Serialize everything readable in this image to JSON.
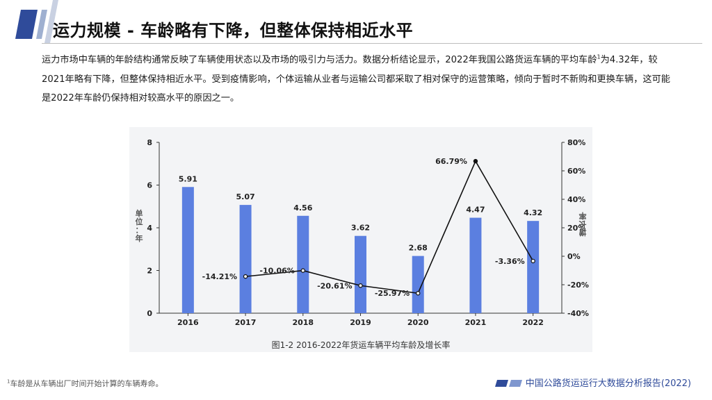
{
  "header": {
    "title": "运力规模 - 车龄略有下降，但整体保持相近水平"
  },
  "intro": {
    "part1": "运力市场中车辆的年龄结构通常反映了车辆使用状态以及市场的吸引力与活力。数据分析结论显示，2022年我国公路货运车辆的平均车龄",
    "sup": "1",
    "part2": "为4.32年，较2021年略有下降，但整体保持相近水平。受到疫情影响，个体运输从业者与运输公司都采取了相对保守的运营策略，倾向于暂时不新购和更换车辆，这可能是2022年车龄仍保持相对较高水平的原因之一。"
  },
  "chart_data": {
    "type": "bar",
    "title": "图1-2 2016-2022年货运车辆平均车龄及增长率",
    "categories": [
      "2016",
      "2017",
      "2018",
      "2019",
      "2020",
      "2021",
      "2022"
    ],
    "ylabel": "单位：年",
    "y2label": "增长率",
    "ylim": [
      0,
      8
    ],
    "yticks": [
      "0",
      "2",
      "4",
      "6",
      "8"
    ],
    "y2lim": [
      -40,
      80
    ],
    "y2ticks": [
      "-40%",
      "-20%",
      "0%",
      "20%",
      "40%",
      "60%",
      "80%"
    ],
    "grid": false,
    "series": [
      {
        "kind": "bar",
        "axis": "left",
        "values": [
          5.91,
          5.07,
          4.56,
          3.62,
          2.68,
          4.47,
          4.32
        ],
        "labels": [
          "5.91",
          "5.07",
          "4.56",
          "3.62",
          "2.68",
          "4.47",
          "4.32"
        ],
        "color": "#5b7fe0"
      },
      {
        "kind": "line",
        "axis": "right",
        "values": [
          null,
          -14.21,
          -10.06,
          -20.61,
          -25.97,
          66.79,
          -3.36
        ],
        "labels": [
          "",
          "-14.21%",
          "-10.06%",
          "-20.61%",
          "-25.97%",
          "66.79%",
          "-3.36%"
        ],
        "color": "#111111"
      }
    ]
  },
  "footnote": {
    "sup": "1",
    "text": "车龄是从车辆出厂时间开始计算的车辆寿命。"
  },
  "footer": {
    "brand": "中国公路货运运行大数据分析报告(2022)"
  },
  "colors": {
    "accent": "#2f4b9a",
    "bar": "#5b7fe0",
    "panel": "#f3f4f6"
  }
}
